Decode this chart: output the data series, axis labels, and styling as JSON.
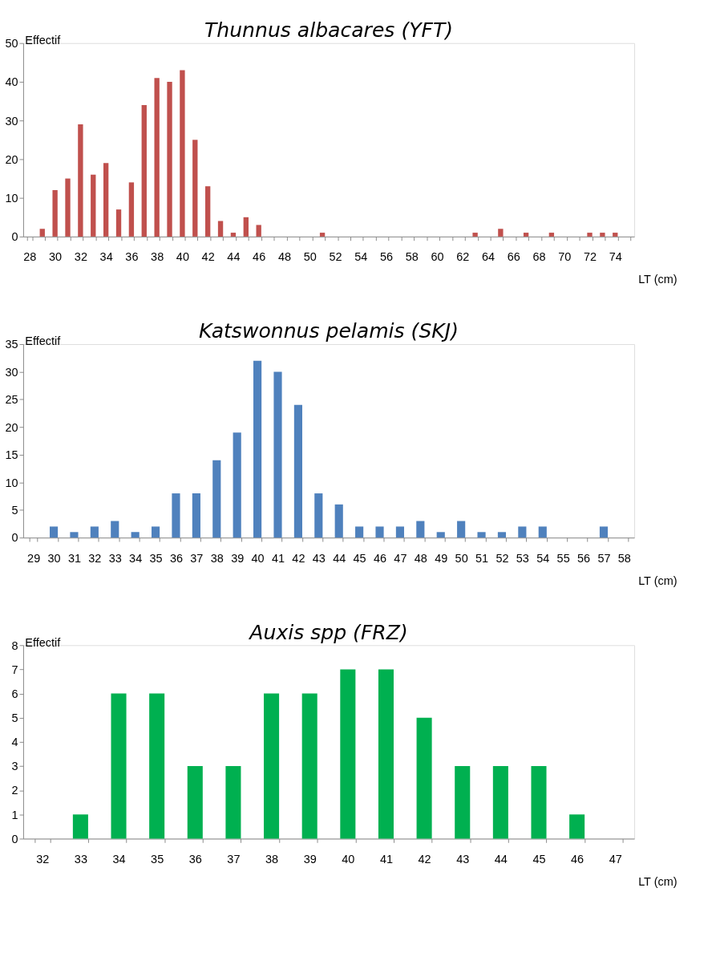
{
  "chart_data": [
    {
      "type": "bar",
      "title": "Thunnus albacares (YFT)",
      "xlabel": "LT (cm)",
      "ylabel": "Effectif",
      "color": "#c0504d",
      "ylim": [
        0,
        50
      ],
      "yticks": [
        0,
        10,
        20,
        30,
        40,
        50
      ],
      "grid": false,
      "categories": [
        "28",
        null,
        "30",
        null,
        "32",
        null,
        "34",
        null,
        "36",
        null,
        "38",
        null,
        "40",
        null,
        "42",
        null,
        "44",
        null,
        "46",
        null,
        "48",
        null,
        "50",
        null,
        "52",
        null,
        "54",
        null,
        "56",
        null,
        "58",
        null,
        "60",
        null,
        "62",
        null,
        "64",
        null,
        "66",
        null,
        "68",
        null,
        "70",
        null,
        "72",
        null,
        "74",
        null
      ],
      "values": [
        0,
        2,
        12,
        15,
        29,
        16,
        19,
        7,
        14,
        34,
        41,
        40,
        43,
        25,
        13,
        4,
        1,
        5,
        3,
        0,
        0,
        0,
        0,
        1,
        0,
        0,
        0,
        0,
        0,
        0,
        0,
        0,
        0,
        0,
        0,
        1,
        0,
        2,
        0,
        1,
        0,
        1,
        0,
        0,
        1,
        1,
        1,
        0
      ]
    },
    {
      "type": "bar",
      "title": "Katswonnus pelamis (SKJ)",
      "xlabel": "LT (cm)",
      "ylabel": "Effectif",
      "color": "#4f81bd",
      "ylim": [
        0,
        35
      ],
      "yticks": [
        0,
        5,
        10,
        15,
        20,
        25,
        30,
        35
      ],
      "grid": false,
      "categories": [
        "29",
        "30",
        "31",
        "32",
        "33",
        "34",
        "35",
        "36",
        "37",
        "38",
        "39",
        "40",
        "41",
        "42",
        "43",
        "44",
        "45",
        "46",
        "47",
        "48",
        "49",
        "50",
        "51",
        "52",
        "53",
        "54",
        "55",
        "56",
        "57",
        "58"
      ],
      "values": [
        0,
        2,
        1,
        2,
        3,
        1,
        2,
        8,
        8,
        14,
        19,
        32,
        30,
        24,
        8,
        6,
        2,
        2,
        2,
        3,
        1,
        3,
        1,
        1,
        2,
        2,
        0,
        0,
        2,
        0
      ]
    },
    {
      "type": "bar",
      "title": "Auxis spp (FRZ)",
      "xlabel": "LT (cm)",
      "ylabel": "Effectif",
      "color": "#00b050",
      "ylim": [
        0,
        8
      ],
      "yticks": [
        0,
        1,
        2,
        3,
        4,
        5,
        6,
        7,
        8
      ],
      "grid": false,
      "categories": [
        "32",
        "33",
        "34",
        "35",
        "36",
        "37",
        "38",
        "39",
        "40",
        "41",
        "42",
        "43",
        "44",
        "45",
        "46",
        "47"
      ],
      "values": [
        0,
        1,
        6,
        6,
        3,
        3,
        6,
        6,
        7,
        7,
        5,
        3,
        3,
        3,
        1,
        0
      ]
    }
  ]
}
